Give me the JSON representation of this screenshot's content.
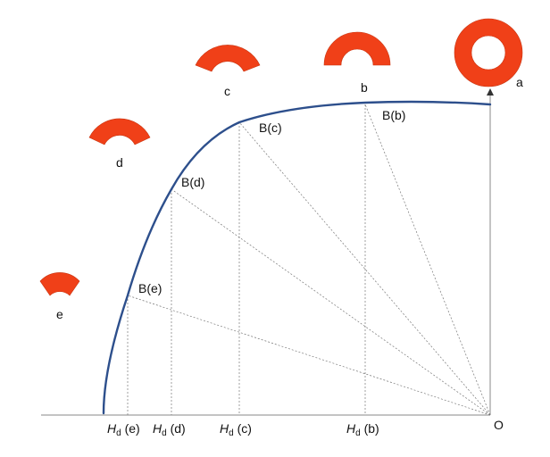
{
  "colors": {
    "magnet": "#f04018",
    "magnet_edge": "#c83410",
    "curve": "#2d4f8c",
    "axis": "#8a8a8a",
    "guide": "#777777"
  },
  "origin_label": "O",
  "shapes": [
    {
      "id": "a",
      "label": "a"
    },
    {
      "id": "b",
      "label": "b"
    },
    {
      "id": "c",
      "label": "c"
    },
    {
      "id": "d",
      "label": "d"
    },
    {
      "id": "e",
      "label": "e"
    }
  ],
  "points": [
    {
      "id": "b",
      "label": "B(b)",
      "axis_label": {
        "symbol": "H",
        "sub": "d",
        "suffix": " (b)"
      }
    },
    {
      "id": "c",
      "label": "B(c)",
      "axis_label": {
        "symbol": "H",
        "sub": "d",
        "suffix": " (c)"
      }
    },
    {
      "id": "d",
      "label": "B(d)",
      "axis_label": {
        "symbol": "H",
        "sub": "d",
        "suffix": " (d)"
      }
    },
    {
      "id": "e",
      "label": "B(e)",
      "axis_label": {
        "symbol": "H",
        "sub": "d",
        "suffix": " (e)"
      }
    }
  ]
}
